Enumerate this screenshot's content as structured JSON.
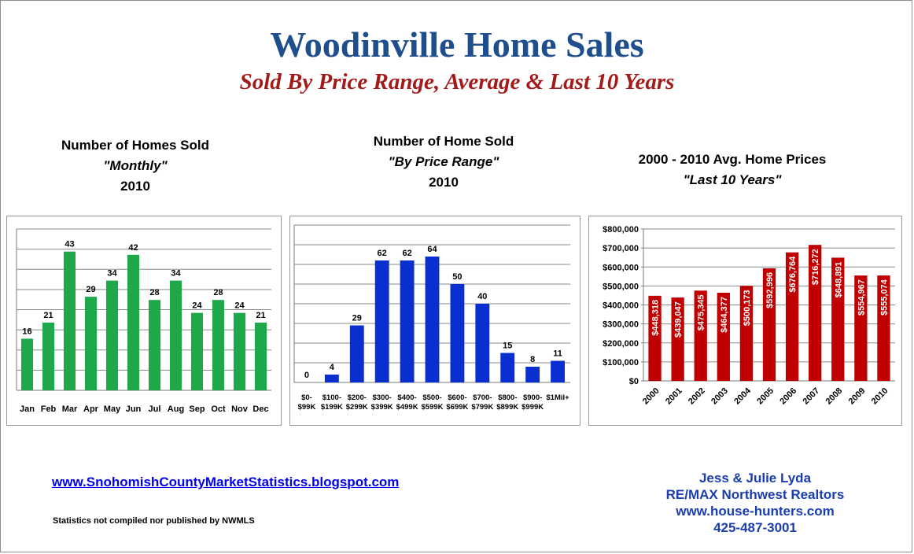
{
  "header": {
    "title": "Woodinville Home Sales",
    "subtitle": "Sold By Price Range, Average & Last 10 Years"
  },
  "chart_headings": [
    {
      "line1": "Number of Homes Sold",
      "line2": "\"Monthly\"",
      "line3": "2010"
    },
    {
      "line1": "Number of Home Sold",
      "line2": "\"By Price Range\"",
      "line3": "2010"
    },
    {
      "line1": "2000 - 2010 Avg. Home Prices",
      "line2": "\"Last 10 Years\"",
      "line3": ""
    }
  ],
  "colors": {
    "green": "#1fa84a",
    "blue": "#0a2fd0",
    "red": "#c00000",
    "title_blue": "#1f4e8c",
    "subtitle_red": "#a31a1a"
  },
  "chart_data": [
    {
      "type": "bar",
      "categories": [
        "Jan",
        "Feb",
        "Mar",
        "Apr",
        "May",
        "Jun",
        "Jul",
        "Aug",
        "Sep",
        "Oct",
        "Nov",
        "Dec"
      ],
      "values": [
        16,
        21,
        43,
        29,
        34,
        42,
        28,
        34,
        24,
        28,
        24,
        21
      ],
      "data_labels": [
        "16",
        "21",
        "43",
        "29",
        "34",
        "42",
        "28",
        "34",
        "24",
        "28",
        "24",
        "21"
      ],
      "ylim": [
        0,
        50
      ],
      "grid": true,
      "color": "#1fa84a"
    },
    {
      "type": "bar",
      "categories": [
        [
          "$0-",
          "$99K"
        ],
        [
          "$100-",
          "$199K"
        ],
        [
          "$200-",
          "$299K"
        ],
        [
          "$300-",
          "$399K"
        ],
        [
          "$400-",
          "$499K"
        ],
        [
          "$500-",
          "$599K"
        ],
        [
          "$600-",
          "$699K"
        ],
        [
          "$700-",
          "$799K"
        ],
        [
          "$800-",
          "$899K"
        ],
        [
          "$900-",
          "$999K"
        ],
        [
          "$1Mil+",
          ""
        ]
      ],
      "values": [
        0,
        4,
        29,
        62,
        62,
        64,
        50,
        40,
        15,
        8,
        11
      ],
      "data_labels": [
        "0",
        "4",
        "29",
        "62",
        "62",
        "64",
        "50",
        "40",
        "15",
        "8",
        "11"
      ],
      "ylim": [
        0,
        80
      ],
      "grid": true,
      "color": "#0a2fd0"
    },
    {
      "type": "bar",
      "categories": [
        "2000",
        "2001",
        "2002",
        "2003",
        "2004",
        "2005",
        "2006",
        "2007",
        "2008",
        "2009",
        "2010"
      ],
      "values": [
        448318,
        439047,
        475345,
        464377,
        500173,
        592996,
        676764,
        716272,
        648891,
        554967,
        555074
      ],
      "data_labels": [
        "$448,318",
        "$439,047",
        "$475,345",
        "$464,377",
        "$500,173",
        "$592,996",
        "$676,764",
        "$716,272",
        "$648,891",
        "$554,967",
        "$555,074"
      ],
      "ylim": [
        0,
        800000
      ],
      "yticks": [
        "$0",
        "$100,000",
        "$200,000",
        "$300,000",
        "$400,000",
        "$500,000",
        "$600,000",
        "$700,000",
        "$800,000"
      ],
      "grid": true,
      "color": "#c00000"
    }
  ],
  "footer": {
    "link": "www.SnohomishCountyMarketStatistics.blogspot.com",
    "note": "Statistics not compiled nor published by NWMLS",
    "contact": [
      "Jess & Julie Lyda",
      "RE/MAX Northwest Realtors",
      "www.house-hunters.com",
      "425-487-3001"
    ]
  }
}
